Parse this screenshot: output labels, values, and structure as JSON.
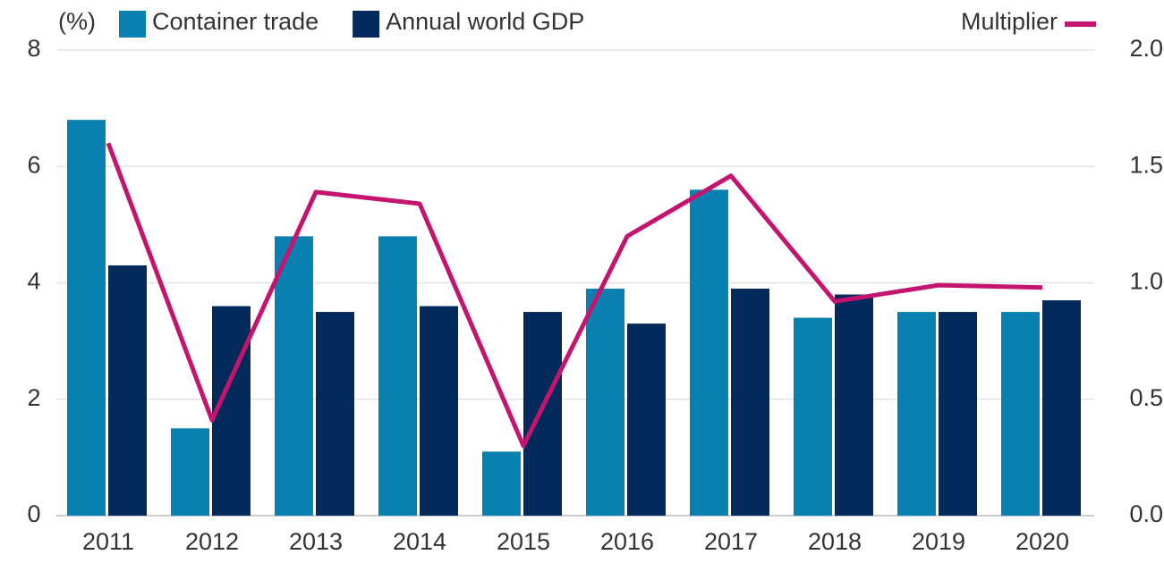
{
  "chart_data": {
    "type": "bar_line",
    "y_label": "(%)",
    "categories": [
      "2011",
      "2012",
      "2013",
      "2014",
      "2015",
      "2016",
      "2017",
      "2018",
      "2019",
      "2020"
    ],
    "series": [
      {
        "name": "Container trade",
        "color": "#0a80b1",
        "values": [
          6.8,
          1.5,
          4.8,
          4.8,
          1.1,
          3.9,
          5.6,
          3.4,
          3.5,
          3.5
        ]
      },
      {
        "name": "Annual world GDP",
        "color": "#032a5a",
        "values": [
          4.3,
          3.6,
          3.5,
          3.6,
          3.5,
          3.3,
          3.9,
          3.8,
          3.5,
          3.7
        ]
      },
      {
        "name": "Multiplier",
        "color": "#c4146e",
        "axis": "y2",
        "values": [
          1.6,
          0.41,
          1.39,
          1.34,
          0.3,
          1.2,
          1.46,
          0.92,
          0.99,
          0.98
        ]
      }
    ],
    "ylim": [
      0,
      8
    ],
    "yticks": [
      0,
      2,
      4,
      6,
      8
    ],
    "y2lim": [
      0,
      2
    ],
    "y2ticks": [
      {
        "value": 0,
        "label": "0.0"
      },
      {
        "value": 0.5,
        "label": "0.5"
      },
      {
        "value": 1,
        "label": "1.0"
      },
      {
        "value": 1.5,
        "label": "1.5"
      },
      {
        "value": 2,
        "label": "2.0"
      }
    ],
    "grid": true
  }
}
